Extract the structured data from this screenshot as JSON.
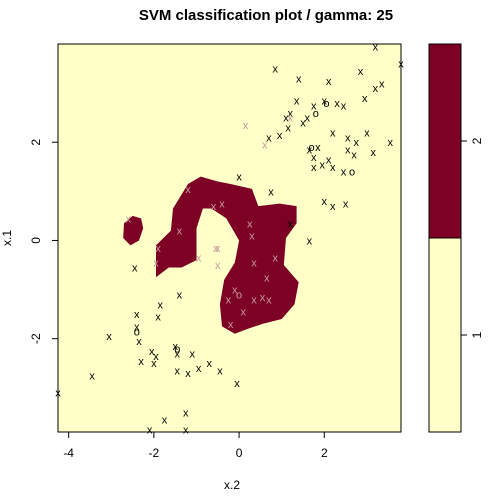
{
  "chart_data": {
    "type": "scatter",
    "title": "SVM classification plot / gamma: 25",
    "xlabel": "x.2",
    "ylabel": "x.1",
    "xlim": [
      -4.25,
      3.8
    ],
    "ylim": [
      -3.9,
      4.0
    ],
    "xticks": [
      "-4",
      "-2",
      "0",
      "2"
    ],
    "yticks": [
      "-2",
      "0",
      "2"
    ],
    "colors": {
      "class1": "#ffffc8",
      "class2": "#7d0025"
    },
    "legend": {
      "position": "right",
      "labels": [
        "1",
        "2"
      ]
    },
    "regions": [
      {
        "class": "2",
        "polygon": [
          [
            -2.5,
            0.5
          ],
          [
            -2.3,
            0.45
          ],
          [
            -2.25,
            0.25
          ],
          [
            -2.35,
            0.0
          ],
          [
            -2.55,
            -0.1
          ],
          [
            -2.72,
            0.05
          ],
          [
            -2.7,
            0.35
          ]
        ]
      },
      {
        "class": "2",
        "polygon": [
          [
            -1.2,
            1.15
          ],
          [
            -0.9,
            1.3
          ],
          [
            -0.5,
            1.2
          ],
          [
            -0.2,
            1.15
          ],
          [
            0.3,
            1.05
          ],
          [
            0.45,
            0.7
          ],
          [
            0.95,
            0.75
          ],
          [
            1.35,
            0.7
          ],
          [
            1.35,
            0.35
          ],
          [
            1.1,
            0.05
          ],
          [
            1.05,
            -0.5
          ],
          [
            1.4,
            -0.85
          ],
          [
            1.3,
            -1.3
          ],
          [
            1.0,
            -1.6
          ],
          [
            0.55,
            -1.7
          ],
          [
            0.2,
            -1.8
          ],
          [
            -0.1,
            -1.9
          ],
          [
            -0.4,
            -1.75
          ],
          [
            -0.45,
            -1.3
          ],
          [
            -0.35,
            -0.8
          ],
          [
            -0.1,
            -0.45
          ],
          [
            0.0,
            0.0
          ],
          [
            -0.3,
            0.45
          ],
          [
            -0.65,
            0.65
          ],
          [
            -0.85,
            0.65
          ],
          [
            -1.0,
            0.25
          ],
          [
            -1.0,
            -0.4
          ],
          [
            -1.35,
            -0.55
          ],
          [
            -1.65,
            -0.55
          ],
          [
            -1.95,
            -0.75
          ],
          [
            -1.95,
            -0.1
          ],
          [
            -1.6,
            0.2
          ],
          [
            -1.55,
            0.65
          ]
        ]
      }
    ],
    "points": [
      {
        "x": -4.25,
        "y": -3.1,
        "m": "x",
        "cls": "1"
      },
      {
        "x": -3.45,
        "y": -2.75,
        "m": "x",
        "cls": "1"
      },
      {
        "x": -3.05,
        "y": -1.95,
        "m": "x",
        "cls": "1"
      },
      {
        "x": -2.45,
        "y": -0.55,
        "m": "x",
        "cls": "1"
      },
      {
        "x": -2.4,
        "y": -1.5,
        "m": "x",
        "cls": "1"
      },
      {
        "x": -2.4,
        "y": -1.75,
        "m": "x",
        "cls": "1"
      },
      {
        "x": -2.4,
        "y": -1.85,
        "m": "o",
        "cls": "1"
      },
      {
        "x": -2.35,
        "y": -2.05,
        "m": "x",
        "cls": "1"
      },
      {
        "x": -2.3,
        "y": -2.45,
        "m": "x",
        "cls": "1"
      },
      {
        "x": -2.05,
        "y": -2.25,
        "m": "x",
        "cls": "1"
      },
      {
        "x": -2.0,
        "y": -2.5,
        "m": "x",
        "cls": "1"
      },
      {
        "x": -1.95,
        "y": -2.35,
        "m": "x",
        "cls": "1"
      },
      {
        "x": -1.9,
        "y": -1.55,
        "m": "x",
        "cls": "1"
      },
      {
        "x": -1.85,
        "y": -1.3,
        "m": "x",
        "cls": "1"
      },
      {
        "x": -1.5,
        "y": -2.15,
        "m": "x",
        "cls": "1"
      },
      {
        "x": -1.45,
        "y": -2.2,
        "m": "o",
        "cls": "1"
      },
      {
        "x": -1.45,
        "y": -2.3,
        "m": "x",
        "cls": "1"
      },
      {
        "x": -1.45,
        "y": -2.65,
        "m": "x",
        "cls": "1"
      },
      {
        "x": -1.4,
        "y": -1.1,
        "m": "x",
        "cls": "1"
      },
      {
        "x": -1.2,
        "y": -2.7,
        "m": "x",
        "cls": "1"
      },
      {
        "x": -1.1,
        "y": -2.3,
        "m": "x",
        "cls": "1"
      },
      {
        "x": -0.95,
        "y": -2.6,
        "m": "x",
        "cls": "1"
      },
      {
        "x": -0.7,
        "y": -2.5,
        "m": "x",
        "cls": "1"
      },
      {
        "x": -0.45,
        "y": -2.65,
        "m": "x",
        "cls": "1"
      },
      {
        "x": -0.05,
        "y": -2.9,
        "m": "x",
        "cls": "1"
      },
      {
        "x": -1.75,
        "y": -3.65,
        "m": "x",
        "cls": "1"
      },
      {
        "x": -1.25,
        "y": -3.5,
        "m": "x",
        "cls": "1"
      },
      {
        "x": -1.25,
        "y": -3.85,
        "m": "x",
        "cls": "1"
      },
      {
        "x": -2.1,
        "y": -3.85,
        "m": "x",
        "cls": "1"
      },
      {
        "x": 0.0,
        "y": 1.3,
        "m": "x",
        "cls": "1"
      },
      {
        "x": 0.75,
        "y": 1.0,
        "m": "x",
        "cls": "1"
      },
      {
        "x": 1.2,
        "y": 0.35,
        "m": "x",
        "cls": "1"
      },
      {
        "x": 1.65,
        "y": 0.0,
        "m": "x",
        "cls": "1"
      },
      {
        "x": 2.0,
        "y": 0.8,
        "m": "x",
        "cls": "1"
      },
      {
        "x": 2.2,
        "y": 0.7,
        "m": "x",
        "cls": "1"
      },
      {
        "x": 2.5,
        "y": 0.75,
        "m": "x",
        "cls": "1"
      },
      {
        "x": 0.85,
        "y": 3.5,
        "m": "x",
        "cls": "1"
      },
      {
        "x": 0.7,
        "y": 2.1,
        "m": "x",
        "cls": "1"
      },
      {
        "x": 0.95,
        "y": 2.15,
        "m": "x",
        "cls": "1"
      },
      {
        "x": 1.1,
        "y": 2.5,
        "m": "x",
        "cls": "1"
      },
      {
        "x": 1.15,
        "y": 2.3,
        "m": "x",
        "cls": "1"
      },
      {
        "x": 1.2,
        "y": 2.6,
        "m": "x",
        "cls": "1"
      },
      {
        "x": 1.35,
        "y": 2.85,
        "m": "x",
        "cls": "1"
      },
      {
        "x": 1.4,
        "y": 3.3,
        "m": "x",
        "cls": "1"
      },
      {
        "x": 1.5,
        "y": 2.4,
        "m": "x",
        "cls": "1"
      },
      {
        "x": 1.6,
        "y": 2.5,
        "m": "x",
        "cls": "1"
      },
      {
        "x": 1.75,
        "y": 2.75,
        "m": "x",
        "cls": "1"
      },
      {
        "x": 1.8,
        "y": 2.6,
        "m": "o",
        "cls": "1"
      },
      {
        "x": 1.65,
        "y": 1.85,
        "m": "x",
        "cls": "1"
      },
      {
        "x": 1.7,
        "y": 1.9,
        "m": "o",
        "cls": "1"
      },
      {
        "x": 1.85,
        "y": 1.9,
        "m": "x",
        "cls": "1"
      },
      {
        "x": 1.75,
        "y": 1.7,
        "m": "x",
        "cls": "1"
      },
      {
        "x": 1.75,
        "y": 1.5,
        "m": "x",
        "cls": "1"
      },
      {
        "x": 1.95,
        "y": 1.55,
        "m": "x",
        "cls": "1"
      },
      {
        "x": 2.0,
        "y": 2.85,
        "m": "x",
        "cls": "1"
      },
      {
        "x": 2.05,
        "y": 2.8,
        "m": "o",
        "cls": "1"
      },
      {
        "x": 2.1,
        "y": 3.25,
        "m": "x",
        "cls": "1"
      },
      {
        "x": 2.1,
        "y": 1.65,
        "m": "x",
        "cls": "1"
      },
      {
        "x": 2.2,
        "y": 2.2,
        "m": "x",
        "cls": "1"
      },
      {
        "x": 2.2,
        "y": 1.5,
        "m": "x",
        "cls": "1"
      },
      {
        "x": 2.3,
        "y": 2.8,
        "m": "x",
        "cls": "1"
      },
      {
        "x": 2.45,
        "y": 2.75,
        "m": "x",
        "cls": "1"
      },
      {
        "x": 2.45,
        "y": 1.4,
        "m": "x",
        "cls": "1"
      },
      {
        "x": 2.55,
        "y": 2.1,
        "m": "x",
        "cls": "1"
      },
      {
        "x": 2.55,
        "y": 1.85,
        "m": "x",
        "cls": "1"
      },
      {
        "x": 2.75,
        "y": 2.0,
        "m": "x",
        "cls": "1"
      },
      {
        "x": 2.7,
        "y": 1.75,
        "m": "x",
        "cls": "1"
      },
      {
        "x": 2.65,
        "y": 1.4,
        "m": "o",
        "cls": "1"
      },
      {
        "x": 2.85,
        "y": 3.45,
        "m": "x",
        "cls": "1"
      },
      {
        "x": 2.95,
        "y": 2.9,
        "m": "x",
        "cls": "1"
      },
      {
        "x": 3.0,
        "y": 2.2,
        "m": "x",
        "cls": "1"
      },
      {
        "x": 3.15,
        "y": 1.8,
        "m": "x",
        "cls": "1"
      },
      {
        "x": 3.2,
        "y": 3.1,
        "m": "x",
        "cls": "1"
      },
      {
        "x": 3.35,
        "y": 3.2,
        "m": "x",
        "cls": "1"
      },
      {
        "x": 3.55,
        "y": 2.0,
        "m": "x",
        "cls": "1"
      },
      {
        "x": 3.8,
        "y": 3.6,
        "m": "x",
        "cls": "1"
      },
      {
        "x": 3.2,
        "y": 3.95,
        "m": "x",
        "cls": "1"
      },
      {
        "x": 0.15,
        "y": 2.35,
        "m": "x",
        "cls": "2"
      },
      {
        "x": 0.6,
        "y": 1.95,
        "m": "x",
        "cls": "2"
      },
      {
        "x": 1.2,
        "y": 2.5,
        "m": "x",
        "cls": "2"
      },
      {
        "x": -2.6,
        "y": 0.45,
        "m": "x",
        "cls": "2"
      },
      {
        "x": -1.2,
        "y": 1.05,
        "m": "x",
        "cls": "2"
      },
      {
        "x": -1.4,
        "y": 0.2,
        "m": "x",
        "cls": "2"
      },
      {
        "x": -0.95,
        "y": -0.35,
        "m": "x",
        "cls": "2"
      },
      {
        "x": -0.5,
        "y": -0.15,
        "m": "x",
        "cls": "2"
      },
      {
        "x": -0.5,
        "y": -0.5,
        "m": "x",
        "cls": "2"
      },
      {
        "x": -0.6,
        "y": 0.7,
        "m": "x",
        "cls": "2"
      },
      {
        "x": -0.4,
        "y": 0.75,
        "m": "x",
        "cls": "2"
      },
      {
        "x": -1.9,
        "y": -0.15,
        "m": "x",
        "cls": "2"
      },
      {
        "x": -1.95,
        "y": -0.45,
        "m": "x",
        "cls": "2"
      },
      {
        "x": -0.55,
        "y": -0.15,
        "m": "x",
        "cls": "2"
      },
      {
        "x": -0.1,
        "y": -1.0,
        "m": "x",
        "cls": "2"
      },
      {
        "x": 0.0,
        "y": -1.1,
        "m": "o",
        "cls": "2"
      },
      {
        "x": 0.1,
        "y": -1.45,
        "m": "x",
        "cls": "2"
      },
      {
        "x": 0.35,
        "y": -1.2,
        "m": "x",
        "cls": "2"
      },
      {
        "x": 0.35,
        "y": -0.45,
        "m": "x",
        "cls": "2"
      },
      {
        "x": 0.55,
        "y": -1.15,
        "m": "x",
        "cls": "2"
      },
      {
        "x": 0.65,
        "y": -0.75,
        "m": "x",
        "cls": "2"
      },
      {
        "x": 0.7,
        "y": -1.2,
        "m": "x",
        "cls": "2"
      },
      {
        "x": 0.85,
        "y": -0.35,
        "m": "x",
        "cls": "2"
      },
      {
        "x": -0.25,
        "y": -1.2,
        "m": "x",
        "cls": "2"
      },
      {
        "x": -0.2,
        "y": -1.7,
        "m": "x",
        "cls": "2"
      },
      {
        "x": 0.25,
        "y": 0.35,
        "m": "x",
        "cls": "2"
      },
      {
        "x": 0.3,
        "y": 0.1,
        "m": "x",
        "cls": "2"
      }
    ]
  }
}
